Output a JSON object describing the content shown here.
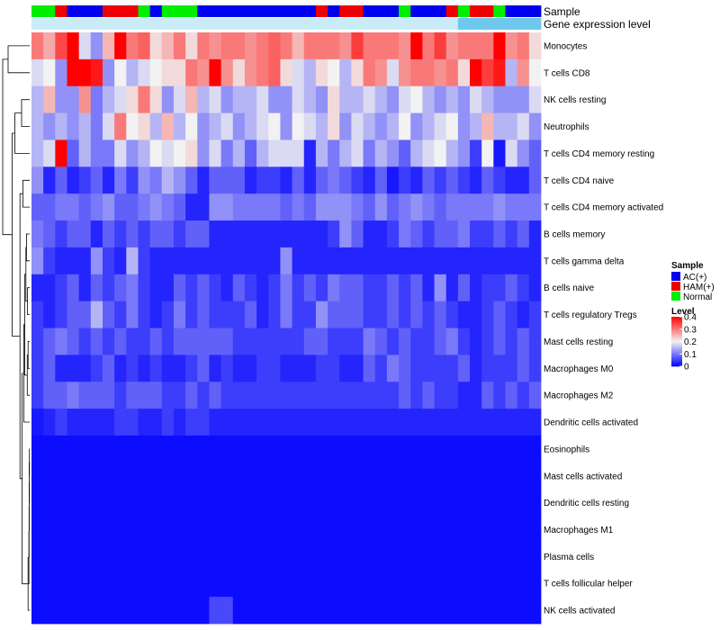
{
  "chart_data": {
    "type": "heatmap",
    "title": "",
    "annotation_labels": [
      "Sample",
      "Gene expression level"
    ],
    "rows": [
      "Monocytes",
      "T cells CD8",
      "NK cells resting",
      "Neutrophils",
      "T cells CD4 memory resting",
      "T cells CD4 naive",
      "T cells CD4 memory activated",
      "B cells memory",
      "T cells gamma delta",
      "B cells naive",
      "T cells regulatory  Tregs",
      "Mast cells resting",
      "Macrophages M0",
      "Macrophages M2",
      "Dendritic cells activated",
      "Eosinophils",
      "Mast cells activated",
      "Dendritic cells resting",
      "Macrophages M1",
      "Plasma cells",
      "T cells follicular helper",
      "NK cells activated"
    ],
    "sample_groups": [
      "Normal",
      "Normal",
      "HAM(+)",
      "AC(+)",
      "AC(+)",
      "AC(+)",
      "HAM(+)",
      "HAM(+)",
      "HAM(+)",
      "Normal",
      "AC(+)",
      "Normal",
      "Normal",
      "Normal",
      "AC(+)",
      "AC(+)",
      "AC(+)",
      "AC(+)",
      "AC(+)",
      "AC(+)",
      "AC(+)",
      "AC(+)",
      "AC(+)",
      "AC(+)",
      "HAM(+)",
      "AC(+)",
      "HAM(+)",
      "HAM(+)",
      "AC(+)",
      "AC(+)",
      "AC(+)",
      "Normal",
      "AC(+)",
      "AC(+)",
      "AC(+)",
      "HAM(+)",
      "Normal",
      "HAM(+)",
      "HAM(+)",
      "Normal",
      "AC(+)",
      "AC(+)",
      "AC(+)"
    ],
    "expression_level": [
      "high",
      "high",
      "high",
      "high",
      "high",
      "high",
      "high",
      "high",
      "high",
      "high",
      "high",
      "high",
      "high",
      "high",
      "high",
      "high",
      "high",
      "high",
      "high",
      "high",
      "high",
      "high",
      "high",
      "high",
      "high",
      "high",
      "high",
      "high",
      "high",
      "high",
      "high",
      "high",
      "high",
      "high",
      "high",
      "high",
      "low",
      "low",
      "low",
      "low",
      "low",
      "low",
      "low"
    ],
    "values": [
      [
        0.3,
        0.26,
        0.34,
        0.4,
        0.18,
        0.12,
        0.25,
        0.4,
        0.3,
        0.32,
        0.22,
        0.25,
        0.3,
        0.22,
        0.3,
        0.28,
        0.3,
        0.3,
        0.28,
        0.3,
        0.32,
        0.3,
        0.25,
        0.3,
        0.3,
        0.3,
        0.28,
        0.35,
        0.3,
        0.3,
        0.3,
        0.28,
        0.4,
        0.3,
        0.35,
        0.28,
        0.3,
        0.3,
        0.3,
        0.4,
        0.28,
        0.3,
        0.22
      ],
      [
        0.18,
        0.2,
        0.12,
        0.4,
        0.4,
        0.38,
        0.12,
        0.2,
        0.15,
        0.18,
        0.2,
        0.22,
        0.22,
        0.3,
        0.28,
        0.4,
        0.28,
        0.22,
        0.28,
        0.3,
        0.32,
        0.22,
        0.18,
        0.15,
        0.22,
        0.2,
        0.15,
        0.22,
        0.3,
        0.28,
        0.18,
        0.28,
        0.3,
        0.3,
        0.28,
        0.3,
        0.22,
        0.4,
        0.35,
        0.38,
        0.15,
        0.28,
        0.2
      ],
      [
        0.15,
        0.25,
        0.12,
        0.12,
        0.28,
        0.1,
        0.15,
        0.18,
        0.22,
        0.3,
        0.22,
        0.12,
        0.18,
        0.25,
        0.15,
        0.18,
        0.12,
        0.15,
        0.15,
        0.18,
        0.12,
        0.12,
        0.18,
        0.15,
        0.12,
        0.22,
        0.15,
        0.15,
        0.18,
        0.15,
        0.12,
        0.18,
        0.2,
        0.15,
        0.12,
        0.15,
        0.12,
        0.18,
        0.15,
        0.12,
        0.12,
        0.12,
        0.18
      ],
      [
        0.15,
        0.12,
        0.15,
        0.12,
        0.15,
        0.1,
        0.18,
        0.3,
        0.2,
        0.22,
        0.15,
        0.25,
        0.15,
        0.2,
        0.12,
        0.15,
        0.18,
        0.12,
        0.15,
        0.18,
        0.2,
        0.12,
        0.2,
        0.18,
        0.15,
        0.22,
        0.12,
        0.18,
        0.15,
        0.12,
        0.15,
        0.2,
        0.12,
        0.15,
        0.18,
        0.2,
        0.12,
        0.15,
        0.25,
        0.15,
        0.15,
        0.18,
        0.12
      ],
      [
        0.15,
        0.18,
        0.4,
        0.08,
        0.15,
        0.1,
        0.1,
        0.18,
        0.12,
        0.15,
        0.2,
        0.18,
        0.2,
        0.22,
        0.12,
        0.18,
        0.1,
        0.15,
        0.08,
        0.15,
        0.18,
        0.18,
        0.18,
        0.03,
        0.15,
        0.1,
        0.15,
        0.18,
        0.1,
        0.15,
        0.12,
        0.08,
        0.15,
        0.18,
        0.2,
        0.15,
        0.12,
        0.05,
        0.2,
        0.02,
        0.18,
        0.12,
        0.08
      ],
      [
        0.12,
        0.03,
        0.08,
        0.03,
        0.05,
        0.08,
        0.03,
        0.1,
        0.05,
        0.12,
        0.1,
        0.15,
        0.12,
        0.08,
        0.03,
        0.08,
        0.08,
        0.08,
        0.03,
        0.05,
        0.05,
        0.03,
        0.08,
        0.03,
        0.08,
        0.1,
        0.08,
        0.05,
        0.03,
        0.08,
        0.02,
        0.05,
        0.03,
        0.08,
        0.05,
        0.08,
        0.05,
        0.03,
        0.08,
        0.05,
        0.03,
        0.03,
        0.08
      ],
      [
        0.08,
        0.08,
        0.1,
        0.1,
        0.08,
        0.1,
        0.12,
        0.08,
        0.08,
        0.1,
        0.12,
        0.1,
        0.08,
        0.03,
        0.03,
        0.12,
        0.12,
        0.1,
        0.1,
        0.1,
        0.1,
        0.08,
        0.1,
        0.08,
        0.12,
        0.12,
        0.12,
        0.1,
        0.08,
        0.12,
        0.08,
        0.1,
        0.12,
        0.1,
        0.08,
        0.1,
        0.1,
        0.1,
        0.1,
        0.12,
        0.1,
        0.1,
        0.1
      ],
      [
        0.1,
        0.08,
        0.05,
        0.08,
        0.08,
        0.03,
        0.08,
        0.05,
        0.08,
        0.05,
        0.08,
        0.08,
        0.05,
        0.08,
        0.08,
        0.03,
        0.03,
        0.03,
        0.03,
        0.03,
        0.03,
        0.03,
        0.03,
        0.03,
        0.03,
        0.05,
        0.12,
        0.08,
        0.03,
        0.03,
        0.05,
        0.1,
        0.08,
        0.05,
        0.08,
        0.08,
        0.1,
        0.05,
        0.05,
        0.08,
        0.05,
        0.08,
        0.03
      ],
      [
        0.12,
        0.05,
        0.03,
        0.03,
        0.03,
        0.12,
        0.05,
        0.03,
        0.15,
        0.05,
        0.03,
        0.03,
        0.03,
        0.03,
        0.03,
        0.03,
        0.03,
        0.03,
        0.03,
        0.03,
        0.03,
        0.12,
        0.03,
        0.03,
        0.03,
        0.03,
        0.03,
        0.03,
        0.03,
        0.03,
        0.03,
        0.03,
        0.03,
        0.03,
        0.03,
        0.03,
        0.03,
        0.03,
        0.03,
        0.03,
        0.03,
        0.03,
        0.03
      ],
      [
        0.03,
        0.03,
        0.05,
        0.08,
        0.03,
        0.08,
        0.05,
        0.08,
        0.1,
        0.05,
        0.03,
        0.03,
        0.08,
        0.05,
        0.08,
        0.05,
        0.03,
        0.08,
        0.05,
        0.03,
        0.05,
        0.1,
        0.05,
        0.08,
        0.05,
        0.1,
        0.08,
        0.08,
        0.05,
        0.05,
        0.08,
        0.05,
        0.08,
        0.03,
        0.12,
        0.03,
        0.08,
        0.03,
        0.05,
        0.05,
        0.08,
        0.05,
        0.03
      ],
      [
        0.05,
        0.03,
        0.05,
        0.08,
        0.08,
        0.15,
        0.08,
        0.05,
        0.1,
        0.05,
        0.03,
        0.05,
        0.1,
        0.05,
        0.08,
        0.05,
        0.05,
        0.05,
        0.08,
        0.03,
        0.05,
        0.1,
        0.05,
        0.05,
        0.12,
        0.08,
        0.08,
        0.08,
        0.05,
        0.05,
        0.08,
        0.05,
        0.08,
        0.05,
        0.08,
        0.05,
        0.03,
        0.03,
        0.05,
        0.08,
        0.05,
        0.03,
        0.05
      ],
      [
        0.05,
        0.08,
        0.1,
        0.08,
        0.05,
        0.08,
        0.05,
        0.08,
        0.05,
        0.05,
        0.08,
        0.05,
        0.08,
        0.08,
        0.08,
        0.08,
        0.08,
        0.05,
        0.05,
        0.05,
        0.05,
        0.05,
        0.05,
        0.08,
        0.08,
        0.05,
        0.05,
        0.05,
        0.1,
        0.08,
        0.05,
        0.08,
        0.05,
        0.05,
        0.08,
        0.1,
        0.05,
        0.03,
        0.05,
        0.08,
        0.05,
        0.08,
        0.05
      ],
      [
        0.05,
        0.08,
        0.03,
        0.03,
        0.03,
        0.05,
        0.08,
        0.03,
        0.05,
        0.03,
        0.05,
        0.03,
        0.03,
        0.05,
        0.08,
        0.03,
        0.05,
        0.03,
        0.03,
        0.05,
        0.05,
        0.03,
        0.03,
        0.03,
        0.05,
        0.05,
        0.03,
        0.03,
        0.08,
        0.05,
        0.1,
        0.08,
        0.05,
        0.05,
        0.05,
        0.05,
        0.08,
        0.03,
        0.05,
        0.05,
        0.05,
        0.08,
        0.05
      ],
      [
        0.05,
        0.08,
        0.08,
        0.1,
        0.08,
        0.08,
        0.08,
        0.05,
        0.08,
        0.08,
        0.08,
        0.05,
        0.05,
        0.08,
        0.05,
        0.08,
        0.05,
        0.05,
        0.05,
        0.05,
        0.05,
        0.05,
        0.05,
        0.05,
        0.05,
        0.05,
        0.05,
        0.05,
        0.05,
        0.05,
        0.05,
        0.08,
        0.05,
        0.08,
        0.05,
        0.05,
        0.03,
        0.03,
        0.08,
        0.05,
        0.08,
        0.05,
        0.08
      ],
      [
        0.02,
        0.03,
        0.05,
        0.03,
        0.03,
        0.03,
        0.03,
        0.05,
        0.05,
        0.03,
        0.03,
        0.05,
        0.03,
        0.05,
        0.05,
        0.03,
        0.03,
        0.03,
        0.03,
        0.03,
        0.03,
        0.03,
        0.03,
        0.03,
        0.03,
        0.03,
        0.03,
        0.03,
        0.03,
        0.03,
        0.03,
        0.03,
        0.03,
        0.03,
        0.03,
        0.03,
        0.03,
        0.03,
        0.03,
        0.03,
        0.03,
        0.03,
        0.03
      ],
      [
        0.01,
        0.01,
        0.01,
        0.01,
        0.01,
        0.01,
        0.01,
        0.01,
        0.01,
        0.01,
        0.01,
        0.01,
        0.01,
        0.01,
        0.01,
        0.01,
        0.01,
        0.01,
        0.01,
        0.01,
        0.01,
        0.01,
        0.01,
        0.01,
        0.01,
        0.01,
        0.01,
        0.01,
        0.01,
        0.01,
        0.01,
        0.01,
        0.01,
        0.01,
        0.01,
        0.01,
        0.01,
        0.01,
        0.01,
        0.01,
        0.01,
        0.01,
        0.01
      ],
      [
        0.01,
        0.01,
        0.01,
        0.01,
        0.01,
        0.01,
        0.01,
        0.01,
        0.01,
        0.01,
        0.01,
        0.01,
        0.01,
        0.01,
        0.01,
        0.01,
        0.01,
        0.01,
        0.01,
        0.01,
        0.01,
        0.01,
        0.01,
        0.01,
        0.01,
        0.01,
        0.01,
        0.01,
        0.01,
        0.01,
        0.01,
        0.01,
        0.01,
        0.01,
        0.01,
        0.01,
        0.01,
        0.01,
        0.01,
        0.01,
        0.01,
        0.01,
        0.01
      ],
      [
        0.01,
        0.01,
        0.01,
        0.01,
        0.01,
        0.01,
        0.01,
        0.01,
        0.01,
        0.01,
        0.01,
        0.01,
        0.01,
        0.01,
        0.01,
        0.01,
        0.01,
        0.01,
        0.01,
        0.01,
        0.01,
        0.01,
        0.01,
        0.01,
        0.01,
        0.01,
        0.01,
        0.01,
        0.01,
        0.01,
        0.01,
        0.01,
        0.01,
        0.01,
        0.01,
        0.01,
        0.01,
        0.01,
        0.01,
        0.01,
        0.01,
        0.01,
        0.01
      ],
      [
        0.01,
        0.01,
        0.01,
        0.01,
        0.01,
        0.01,
        0.01,
        0.01,
        0.01,
        0.01,
        0.01,
        0.01,
        0.01,
        0.01,
        0.01,
        0.01,
        0.01,
        0.01,
        0.01,
        0.01,
        0.01,
        0.01,
        0.01,
        0.01,
        0.01,
        0.01,
        0.01,
        0.01,
        0.01,
        0.01,
        0.01,
        0.01,
        0.01,
        0.01,
        0.01,
        0.01,
        0.01,
        0.01,
        0.01,
        0.01,
        0.01,
        0.01,
        0.01
      ],
      [
        0.01,
        0.01,
        0.01,
        0.01,
        0.01,
        0.01,
        0.01,
        0.01,
        0.01,
        0.01,
        0.01,
        0.01,
        0.01,
        0.01,
        0.01,
        0.01,
        0.01,
        0.01,
        0.01,
        0.01,
        0.01,
        0.01,
        0.01,
        0.01,
        0.01,
        0.01,
        0.01,
        0.01,
        0.01,
        0.01,
        0.01,
        0.01,
        0.01,
        0.01,
        0.01,
        0.01,
        0.01,
        0.01,
        0.01,
        0.01,
        0.01,
        0.01,
        0.01
      ],
      [
        0.01,
        0.01,
        0.01,
        0.01,
        0.01,
        0.01,
        0.01,
        0.01,
        0.01,
        0.01,
        0.01,
        0.01,
        0.01,
        0.01,
        0.01,
        0.01,
        0.01,
        0.01,
        0.01,
        0.01,
        0.01,
        0.01,
        0.01,
        0.01,
        0.01,
        0.01,
        0.01,
        0.01,
        0.01,
        0.01,
        0.01,
        0.01,
        0.01,
        0.01,
        0.01,
        0.01,
        0.01,
        0.01,
        0.01,
        0.01,
        0.01,
        0.01,
        0.01
      ],
      [
        0.01,
        0.01,
        0.01,
        0.01,
        0.01,
        0.01,
        0.01,
        0.01,
        0.01,
        0.01,
        0.01,
        0.01,
        0.01,
        0.01,
        0.01,
        0.06,
        0.06,
        0.01,
        0.01,
        0.01,
        0.01,
        0.01,
        0.01,
        0.01,
        0.01,
        0.01,
        0.01,
        0.01,
        0.01,
        0.01,
        0.01,
        0.01,
        0.01,
        0.01,
        0.01,
        0.01,
        0.01,
        0.01,
        0.01,
        0.01,
        0.01,
        0.01,
        0.01
      ]
    ],
    "color_scale": {
      "min": 0,
      "mid": 0.2,
      "max": 0.4,
      "low_color": "#0000ff",
      "mid_color": "#f2f2f2",
      "high_color": "#ff0000"
    },
    "legend": {
      "sample_title": "Sample",
      "groups": [
        {
          "label": "AC(+)",
          "color": "#0000ee"
        },
        {
          "label": "HAM(+)",
          "color": "#ee0000"
        },
        {
          "label": "Normal",
          "color": "#00ee00"
        }
      ],
      "level_title": "Level",
      "level_ticks": [
        {
          "label": "0.4",
          "value": 0.4
        },
        {
          "label": "0.3",
          "value": 0.3
        },
        {
          "label": "0.2",
          "value": 0.2
        },
        {
          "label": "0.1",
          "value": 0.1
        },
        {
          "label": "0",
          "value": 0
        }
      ]
    },
    "expression_colors": {
      "high": "#c9ecf8",
      "low": "#6ec7ec"
    },
    "dendrogram": [
      {
        "a": 0,
        "b": 1,
        "height": 0.8
      },
      {
        "a": 2,
        "b": 3,
        "height": 0.3
      },
      {
        "a": "n1",
        "b": 4,
        "height": 0.55
      },
      {
        "a": 5,
        "b": 6,
        "height": 0.25
      },
      {
        "a": 7,
        "b": 8,
        "height": 0.12
      },
      {
        "a": 9,
        "b": 10,
        "height": 0.08
      },
      {
        "a": "n4",
        "b": "n5",
        "height": 0.14
      },
      {
        "a": 11,
        "b": 12,
        "height": 0.06
      },
      {
        "a": "n7",
        "b": 13,
        "height": 0.09
      },
      {
        "a": "n6",
        "b": "n8",
        "height": 0.18
      },
      {
        "a": "n9",
        "b": 14,
        "height": 0.22
      },
      {
        "a": 15,
        "b": 16,
        "height": 0.01
      },
      {
        "a": "n11",
        "b": 17,
        "height": 0.015
      },
      {
        "a": "n12",
        "b": 18,
        "height": 0.02
      },
      {
        "a": "n13",
        "b": 19,
        "height": 0.025
      },
      {
        "a": "n14",
        "b": 20,
        "height": 0.03
      },
      {
        "a": "n15",
        "b": 21,
        "height": 0.06
      },
      {
        "a": "n10",
        "b": "n16",
        "height": 0.28
      },
      {
        "a": "n3",
        "b": "n17",
        "height": 0.36
      },
      {
        "a": "n2",
        "b": "n18",
        "height": 0.65
      },
      {
        "a": "n0",
        "b": "n19",
        "height": 1.0
      }
    ]
  }
}
